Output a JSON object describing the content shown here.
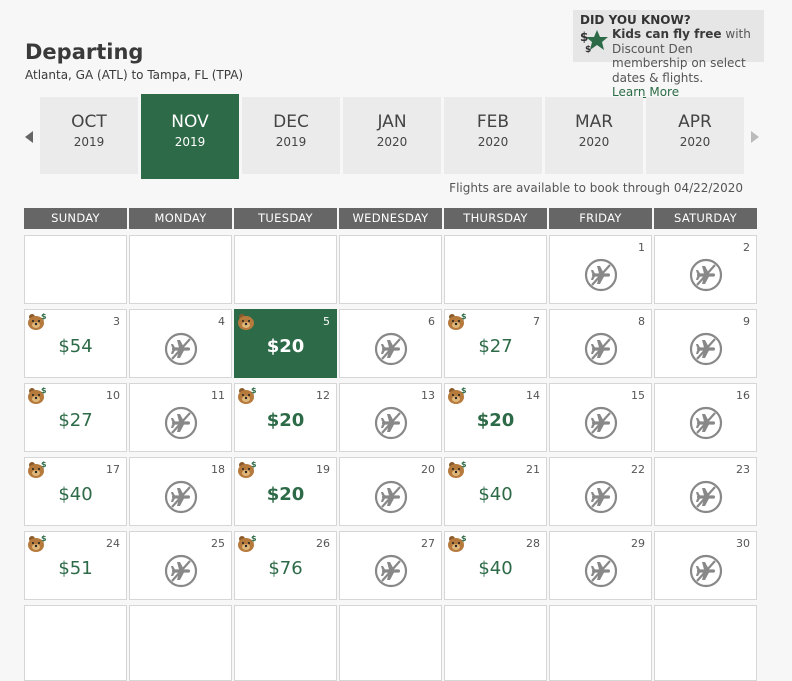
{
  "header": {
    "title": "Departing",
    "route": "Atlanta, GA (ATL) to Tampa, FL (TPA)"
  },
  "did_you_know": {
    "title": "DID YOU KNOW?",
    "bold_text": "Kids can fly free",
    "text": " with Discount Den membership on select dates & flights.",
    "link": "Learn More"
  },
  "months": [
    {
      "month": "OCT",
      "year": "2019",
      "selected": false
    },
    {
      "month": "NOV",
      "year": "2019",
      "selected": true
    },
    {
      "month": "DEC",
      "year": "2019",
      "selected": false
    },
    {
      "month": "JAN",
      "year": "2020",
      "selected": false
    },
    {
      "month": "FEB",
      "year": "2020",
      "selected": false
    },
    {
      "month": "MAR",
      "year": "2020",
      "selected": false
    },
    {
      "month": "APR",
      "year": "2020",
      "selected": false
    }
  ],
  "availability_note": "Flights are available to book through 04/22/2020",
  "weekdays": [
    "SUNDAY",
    "MONDAY",
    "TUESDAY",
    "WEDNESDAY",
    "THURSDAY",
    "FRIDAY",
    "SATURDAY"
  ],
  "days": [
    {
      "day": "1",
      "col": 5,
      "row": 0,
      "status": "none"
    },
    {
      "day": "2",
      "col": 6,
      "row": 0,
      "status": "none"
    },
    {
      "day": "3",
      "col": 0,
      "row": 1,
      "price": "$54",
      "discount": true
    },
    {
      "day": "4",
      "col": 1,
      "row": 1,
      "status": "none"
    },
    {
      "day": "5",
      "col": 2,
      "row": 1,
      "price": "$20",
      "discount": true,
      "selected": true,
      "lowest": true
    },
    {
      "day": "6",
      "col": 3,
      "row": 1,
      "status": "none"
    },
    {
      "day": "7",
      "col": 4,
      "row": 1,
      "price": "$27",
      "discount": true
    },
    {
      "day": "8",
      "col": 5,
      "row": 1,
      "status": "none"
    },
    {
      "day": "9",
      "col": 6,
      "row": 1,
      "status": "none"
    },
    {
      "day": "10",
      "col": 0,
      "row": 2,
      "price": "$27",
      "discount": true
    },
    {
      "day": "11",
      "col": 1,
      "row": 2,
      "status": "none"
    },
    {
      "day": "12",
      "col": 2,
      "row": 2,
      "price": "$20",
      "discount": true,
      "lowest": true
    },
    {
      "day": "13",
      "col": 3,
      "row": 2,
      "status": "none"
    },
    {
      "day": "14",
      "col": 4,
      "row": 2,
      "price": "$20",
      "discount": true,
      "lowest": true
    },
    {
      "day": "15",
      "col": 5,
      "row": 2,
      "status": "none"
    },
    {
      "day": "16",
      "col": 6,
      "row": 2,
      "status": "none"
    },
    {
      "day": "17",
      "col": 0,
      "row": 3,
      "price": "$40",
      "discount": true
    },
    {
      "day": "18",
      "col": 1,
      "row": 3,
      "status": "none"
    },
    {
      "day": "19",
      "col": 2,
      "row": 3,
      "price": "$20",
      "discount": true,
      "lowest": true
    },
    {
      "day": "20",
      "col": 3,
      "row": 3,
      "status": "none"
    },
    {
      "day": "21",
      "col": 4,
      "row": 3,
      "price": "$40",
      "discount": true
    },
    {
      "day": "22",
      "col": 5,
      "row": 3,
      "status": "none"
    },
    {
      "day": "23",
      "col": 6,
      "row": 3,
      "status": "none"
    },
    {
      "day": "24",
      "col": 0,
      "row": 4,
      "price": "$51",
      "discount": true
    },
    {
      "day": "25",
      "col": 1,
      "row": 4,
      "status": "none"
    },
    {
      "day": "26",
      "col": 2,
      "row": 4,
      "price": "$76",
      "discount": true
    },
    {
      "day": "27",
      "col": 3,
      "row": 4,
      "status": "none"
    },
    {
      "day": "28",
      "col": 4,
      "row": 4,
      "price": "$40",
      "discount": true
    },
    {
      "day": "29",
      "col": 5,
      "row": 4,
      "status": "none"
    },
    {
      "day": "30",
      "col": 6,
      "row": 4,
      "status": "none"
    }
  ],
  "colors": {
    "brand_green": "#2d6a47",
    "weekday_header": "#666666",
    "no_flight_icon": "#888888"
  },
  "icons": {
    "discount": "discount-den-icon",
    "no_flight": "no-flights-icon",
    "prev": "chevron-left-icon",
    "next": "chevron-right-icon"
  }
}
